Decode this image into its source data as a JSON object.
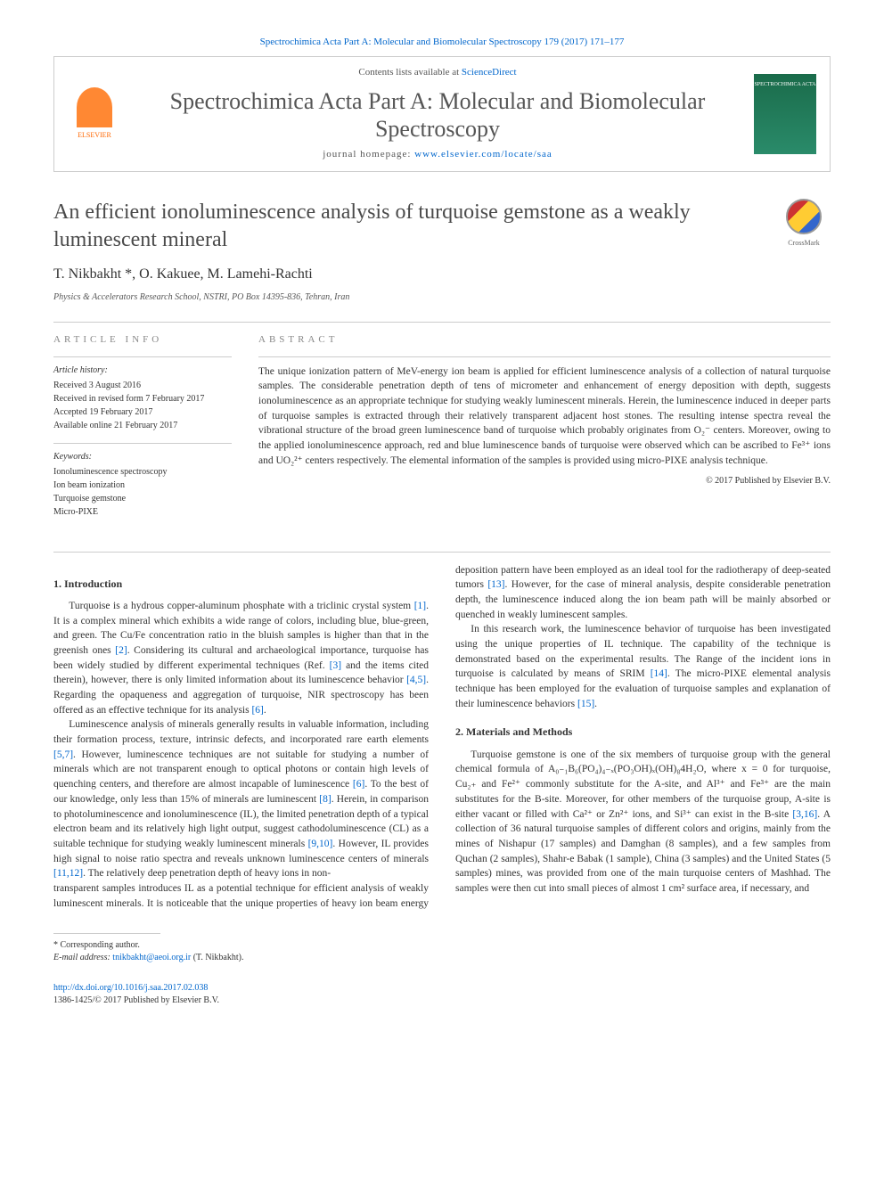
{
  "journal_ref_top": "Spectrochimica Acta Part A: Molecular and Biomolecular Spectroscopy 179 (2017) 171–177",
  "header": {
    "elsevier_label": "ELSEVIER",
    "contents_prefix": "Contents lists available at ",
    "contents_link": "ScienceDirect",
    "journal_name": "Spectrochimica Acta Part A: Molecular and Biomolecular Spectroscopy",
    "homepage_prefix": "journal homepage: ",
    "homepage_url": "www.elsevier.com/locate/saa",
    "cover_text": "SPECTROCHIMICA ACTA"
  },
  "article": {
    "title": "An efficient ionoluminescence analysis of turquoise gemstone as a weakly luminescent mineral",
    "crossmark_label": "CrossMark",
    "authors": "T. Nikbakht *, O. Kakuee, M. Lamehi-Rachti",
    "affiliation": "Physics & Accelerators Research School, NSTRI, PO Box 14395-836, Tehran, Iran"
  },
  "info": {
    "heading": "ARTICLE INFO",
    "history_label": "Article history:",
    "history": "Received 3 August 2016\nReceived in revised form 7 February 2017\nAccepted 19 February 2017\nAvailable online 21 February 2017",
    "keywords_label": "Keywords:",
    "keywords": "Ionoluminescence spectroscopy\nIon beam ionization\nTurquoise gemstone\nMicro-PIXE"
  },
  "abstract": {
    "heading": "ABSTRACT",
    "text": "The unique ionization pattern of MeV-energy ion beam is applied for efficient luminescence analysis of a collection of natural turquoise samples. The considerable penetration depth of tens of micrometer and enhancement of energy deposition with depth, suggests ionoluminescence as an appropriate technique for studying weakly luminescent minerals. Herein, the luminescence induced in deeper parts of turquoise samples is extracted through their relatively transparent adjacent host stones. The resulting intense spectra reveal the vibrational structure of the broad green luminescence band of turquoise which probably originates from O₂⁻ centers. Moreover, owing to the applied ionoluminescence approach, red and blue luminescence bands of turquoise were observed which can be ascribed to Fe³⁺ ions and UO₂²⁺ centers respectively. The elemental information of the samples is provided using micro-PIXE analysis technique.",
    "copyright": "© 2017 Published by Elsevier B.V."
  },
  "sections": {
    "intro_heading": "1. Introduction",
    "intro_p1a": "Turquoise is a hydrous copper-aluminum phosphate with a triclinic crystal system ",
    "intro_p1b": ". It is a complex mineral which exhibits a wide range of colors, including blue, blue-green, and green. The Cu/Fe concentration ratio in the bluish samples is higher than that in the greenish ones ",
    "intro_p1c": ". Considering its cultural and archaeological importance, turquoise has been widely studied by different experimental techniques (Ref. ",
    "intro_p1d": " and the items cited therein), however, there is only limited information about its luminescence behavior ",
    "intro_p1e": ". Regarding the opaqueness and aggregation of turquoise, NIR spectroscopy has been offered as an effective technique for its analysis ",
    "intro_p1f": ".",
    "intro_p2a": "Luminescence analysis of minerals generally results in valuable information, including their formation process, texture, intrinsic defects, and incorporated rare earth elements ",
    "intro_p2b": ". However, luminescence techniques are not suitable for studying a number of minerals which are not transparent enough to optical photons or contain high levels of quenching centers, and therefore are almost incapable of luminescence ",
    "intro_p2c": ". To the best of our knowledge, only less than 15% of minerals are luminescent ",
    "intro_p2d": ". Herein, in comparison to photoluminescence and ionoluminescence (IL), the limited penetration depth of a typical electron beam and its relatively high light output, suggest cathodoluminescence (CL) as a suitable technique for studying weakly luminescent minerals ",
    "intro_p2e": ". However, IL provides high signal to noise ratio spectra and reveals unknown luminescence centers of minerals ",
    "intro_p2f": ". The relatively deep penetration depth of heavy ions in non-",
    "intro_p3a": "transparent samples introduces IL as a potential technique for efficient analysis of weakly luminescent minerals. It is noticeable that the unique properties of heavy ion beam energy deposition pattern have been employed as an ideal tool for the radiotherapy of deep-seated tumors ",
    "intro_p3b": ". However, for the case of mineral analysis, despite considerable penetration depth, the luminescence induced along the ion beam path will be mainly absorbed or quenched in weakly luminescent samples.",
    "intro_p4a": "In this research work, the luminescence behavior of turquoise has been investigated using the unique properties of IL technique. The capability of the technique is demonstrated based on the experimental results. The Range of the incident ions in turquoise is calculated by means of SRIM ",
    "intro_p4b": ". The micro-PIXE elemental analysis technique has been employed for the evaluation of turquoise samples and explanation of their luminescence behaviors ",
    "intro_p4c": ".",
    "methods_heading": "2. Materials and Methods",
    "methods_p1a": "Turquoise gemstone is one of the six members of turquoise group with the general chemical formula of A₀₋₁B₆(PO₄)₄₋ₓ(PO₃OH)ₓ(OH)₈4H₂O, where x = 0 for turquoise, Cu₂₊ and Fe²⁺ commonly substitute for the A-site, and Al³⁺ and Fe³⁺ are the main substitutes for the B-site. Moreover, for other members of the turquoise group, A-site is either vacant or filled with Ca²⁺ or Zn²⁺ ions, and Si³⁺ can exist in the B-site ",
    "methods_p1b": ". A collection of 36 natural turquoise samples of different colors and origins, mainly from the mines of Nishapur (17 samples) and Damghan (8 samples), and a few samples from Quchan (2 samples), Shahr-e Babak (1 sample), China (3 samples) and the United States (5 samples) mines, was provided from one of the main turquoise centers of Mashhad. The samples were then cut into small pieces of almost 1 cm² surface area, if necessary, and"
  },
  "refs": {
    "r1": "[1]",
    "r2": "[2]",
    "r3": "[3]",
    "r45": "[4,5]",
    "r6": "[6]",
    "r57": "[5,7]",
    "r8": "[8]",
    "r910": "[9,10]",
    "r1112": "[11,12]",
    "r13": "[13]",
    "r14": "[14]",
    "r15": "[15]",
    "r316": "[3,16]"
  },
  "footer": {
    "corresponding": "* Corresponding author.",
    "email_label": "E-mail address: ",
    "email": "tnikbakht@aeoi.org.ir",
    "email_suffix": " (T. Nikbakht).",
    "doi": "http://dx.doi.org/10.1016/j.saa.2017.02.038",
    "issn": "1386-1425/© 2017 Published by Elsevier B.V."
  },
  "colors": {
    "link": "#0066cc",
    "text": "#333333",
    "heading_gray": "#888888",
    "elsevier_orange": "#ff6600",
    "cover_green": "#1a6b4a"
  }
}
